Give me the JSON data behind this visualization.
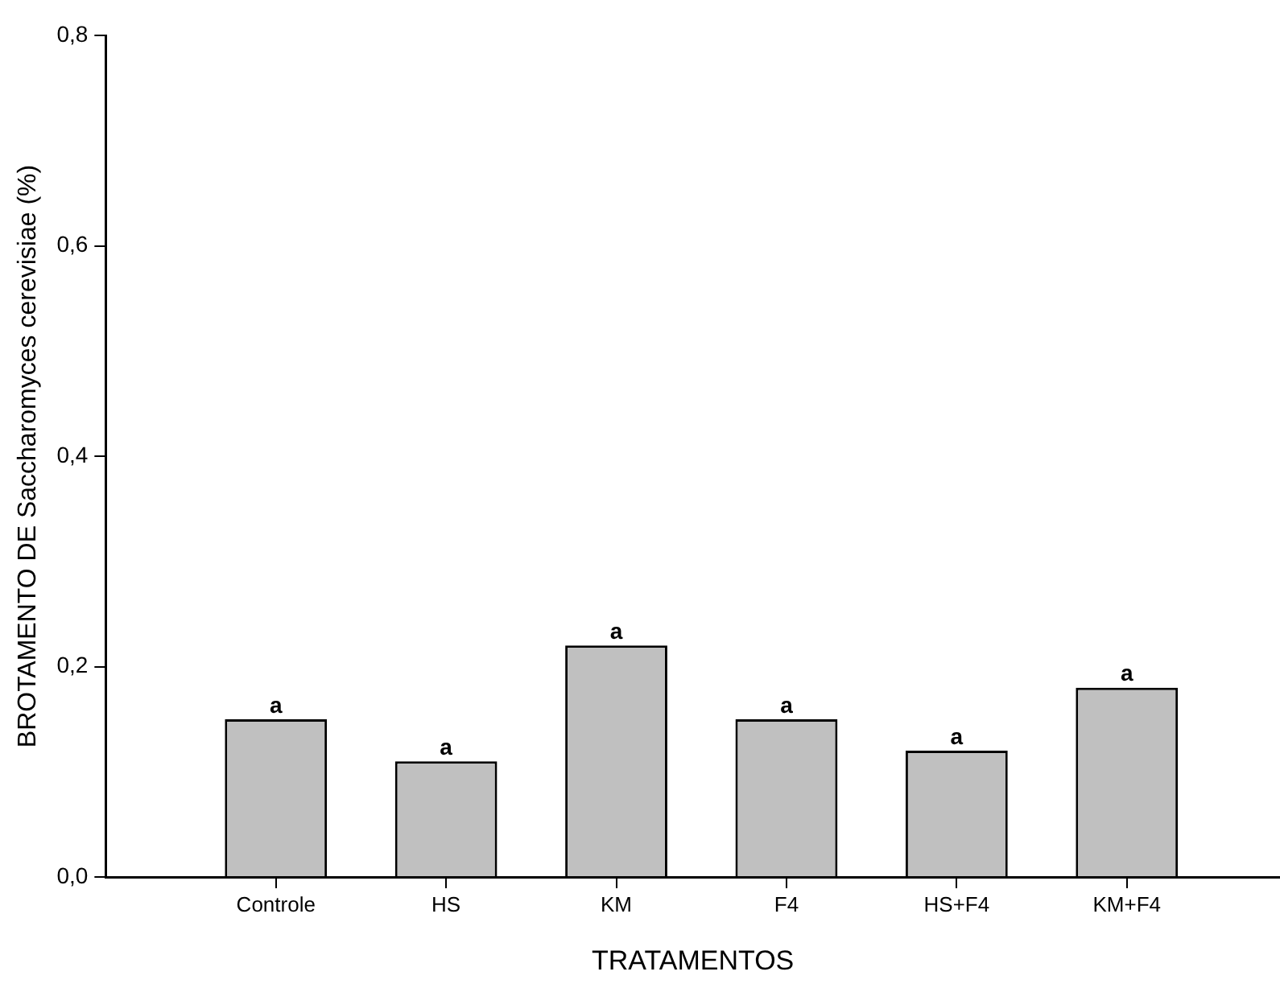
{
  "chart_data": {
    "type": "bar",
    "xlabel": "TRATAMENTOS",
    "ylabel": "BROTAMENTO DE Saccharomyces cerevisiae (%)",
    "categories": [
      "Controle",
      "HS",
      "KM",
      "F4",
      "HS+F4",
      "KM+F4"
    ],
    "values": [
      0.15,
      0.11,
      0.22,
      0.15,
      0.12,
      0.18
    ],
    "color": "#c0c0c0",
    "ylim": [
      0,
      0.8
    ],
    "yticks": [
      {
        "value": 0,
        "label": "0,0"
      },
      {
        "value": 0.2,
        "label": "0,2"
      },
      {
        "value": 0.4,
        "label": "0,4"
      },
      {
        "value": 0.6,
        "label": "0,6"
      },
      {
        "value": 0.8,
        "label": "0,8"
      }
    ],
    "grid": false,
    "legend": false,
    "annotations": [
      {
        "text": "a",
        "x": "Controle",
        "y": 0.15
      },
      {
        "text": "a",
        "x": "HS",
        "y": 0.11
      },
      {
        "text": "a",
        "x": "KM",
        "y": 0.22
      },
      {
        "text": "a",
        "x": "F4",
        "y": 0.15
      },
      {
        "text": "a",
        "x": "HS+F4",
        "y": 0.12
      },
      {
        "text": "a",
        "x": "KM+F4",
        "y": 0.18
      }
    ]
  }
}
